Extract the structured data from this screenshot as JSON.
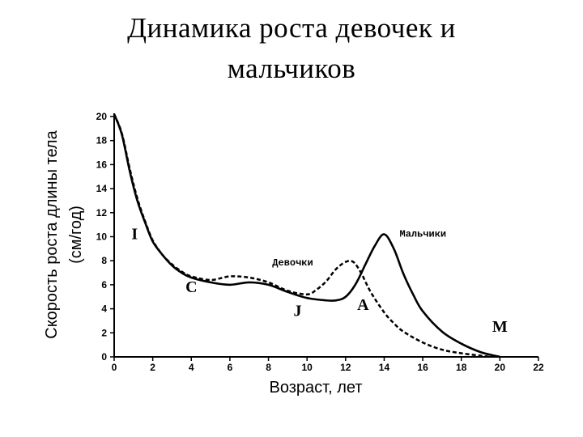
{
  "slide": {
    "title_line1": "Динамика роста девочек и",
    "title_line2": "мальчиков"
  },
  "chart_data": {
    "type": "line",
    "title": "Динамика роста девочек и мальчиков",
    "xlabel": "Возраст, лет",
    "ylabel_line1": "Скорость роста длины тела",
    "ylabel_line2": "(см/год)",
    "xlim": [
      0,
      22
    ],
    "ylim": [
      0,
      20
    ],
    "x_ticks": [
      "0",
      "2",
      "4",
      "6",
      "8",
      "10",
      "12",
      "14",
      "16",
      "18",
      "20",
      "22"
    ],
    "y_ticks": [
      "0",
      "2",
      "4",
      "6",
      "8",
      "10",
      "12",
      "14",
      "16",
      "18",
      "20"
    ],
    "grid": false,
    "series": [
      {
        "name": "Мальчики",
        "style": "solid",
        "color": "#000000",
        "x": [
          0,
          0.4,
          0.8,
          1.2,
          1.6,
          2,
          2.5,
          3,
          3.5,
          4,
          5,
          6,
          7,
          8,
          9,
          10,
          11,
          11.5,
          12,
          12.5,
          13,
          13.5,
          14,
          14.5,
          15,
          15.5,
          16,
          17,
          18,
          19,
          20
        ],
        "values": [
          20.2,
          18.5,
          15.5,
          13.0,
          11.2,
          9.6,
          8.5,
          7.6,
          7.0,
          6.6,
          6.2,
          6.0,
          6.2,
          6.0,
          5.4,
          4.9,
          4.7,
          4.7,
          5.0,
          6.0,
          7.6,
          9.2,
          10.2,
          9.0,
          6.9,
          5.2,
          3.8,
          2.1,
          1.1,
          0.4,
          0
        ]
      },
      {
        "name": "Девочки",
        "style": "dashed",
        "color": "#000000",
        "x": [
          0,
          0.4,
          0.8,
          1.2,
          1.6,
          2,
          2.5,
          3,
          3.5,
          4,
          5,
          6,
          7,
          8,
          9,
          10,
          10.5,
          11,
          11.5,
          12,
          12.4,
          12.8,
          13.3,
          14,
          14.5,
          15,
          16,
          17,
          18,
          19,
          19.5
        ],
        "values": [
          20.2,
          18.6,
          15.7,
          13.2,
          11.3,
          9.7,
          8.5,
          7.7,
          7.1,
          6.7,
          6.4,
          6.7,
          6.6,
          6.2,
          5.5,
          5.2,
          5.6,
          6.3,
          7.3,
          7.9,
          7.9,
          7.0,
          5.4,
          3.7,
          2.8,
          2.1,
          1.2,
          0.6,
          0.3,
          0.1,
          0
        ]
      }
    ],
    "annotations": [
      {
        "text": "I",
        "x": 0.9,
        "y": 9.8
      },
      {
        "text": "C",
        "x": 3.7,
        "y": 5.4
      },
      {
        "text": "J",
        "x": 9.3,
        "y": 3.4
      },
      {
        "text": "A",
        "x": 12.6,
        "y": 3.9
      },
      {
        "text": "M",
        "x": 19.6,
        "y": 2.1
      },
      {
        "text": "Девочки",
        "x": 8.2,
        "y": 7.6
      },
      {
        "text": "Мальчики",
        "x": 14.8,
        "y": 10.0
      }
    ]
  }
}
